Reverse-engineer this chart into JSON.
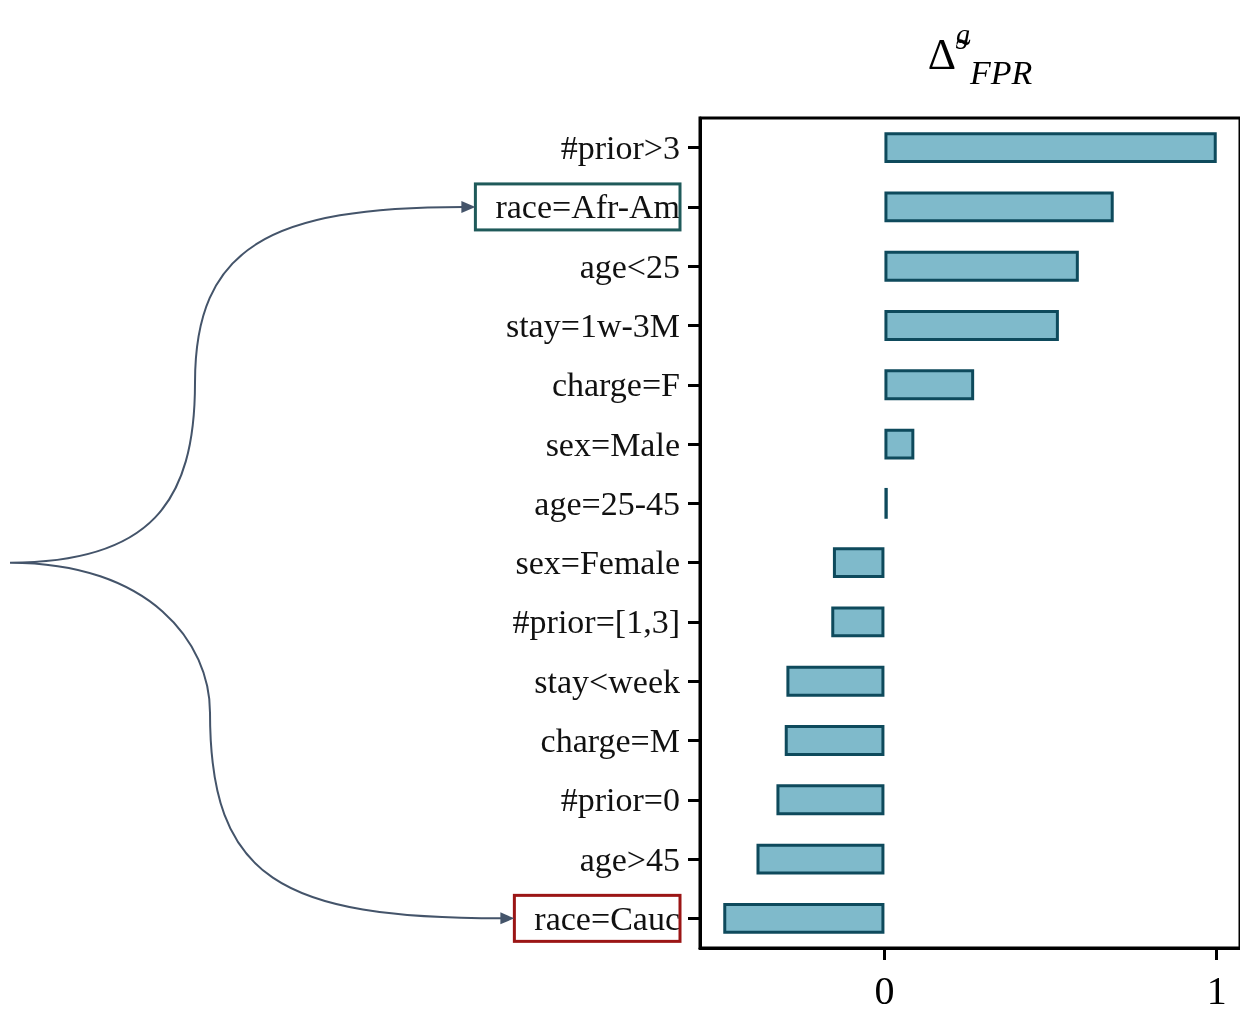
{
  "chart_data": {
    "type": "bar",
    "orientation": "horizontal",
    "title": "Δ̃$^{g}$$_{FPR}$",
    "categories": [
      "#prior>3",
      "race=Afr-Am",
      "age<25",
      "stay=1w-3M",
      "charge=F",
      "sex=Male",
      "age=25-45",
      "sex=Female",
      "#prior=[1,3]",
      "stay<week",
      "charge=M",
      "#prior=0",
      "age>45",
      "race=Cauc"
    ],
    "values": [
      1.0,
      0.69,
      0.585,
      0.525,
      0.27,
      0.09,
      0.01,
      -0.155,
      -0.16,
      -0.295,
      -0.3,
      -0.325,
      -0.385,
      -0.485
    ],
    "color": "#7fbacb",
    "xlim": [
      -0.555,
      1.07
    ],
    "xticks": [
      0,
      1
    ]
  }
}
